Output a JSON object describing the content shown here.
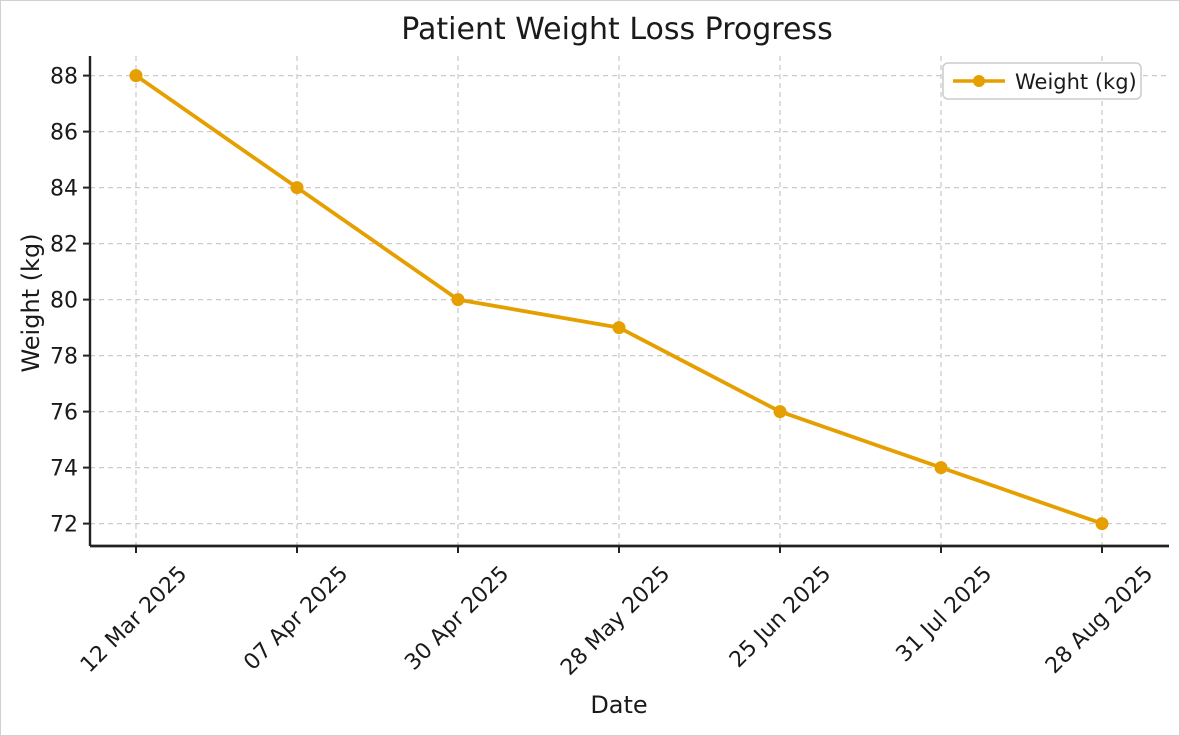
{
  "chart_data": {
    "type": "line",
    "title": "Patient Weight Loss Progress",
    "xlabel": "Date",
    "ylabel": "Weight (kg)",
    "categories": [
      "12 Mar 2025",
      "07 Apr 2025",
      "30 Apr 2025",
      "28 May 2025",
      "25 Jun 2025",
      "31 Jul 2025",
      "28 Aug 2025"
    ],
    "series": [
      {
        "name": "Weight (kg)",
        "values": [
          88,
          84,
          80,
          79,
          76,
          74,
          72
        ]
      }
    ],
    "yticks": [
      72,
      74,
      76,
      78,
      80,
      82,
      84,
      86,
      88
    ],
    "ylim": [
      71.2,
      88.7
    ],
    "grid": true,
    "legend": {
      "position": "upper right",
      "label": "Weight (kg)"
    },
    "colors": {
      "line": "#E69F00",
      "marker": "#E69F00",
      "grid": "#cccccc",
      "axis": "#222222",
      "text": "#1a1a1a",
      "legend_border": "#cccccc",
      "background": "#ffffff"
    }
  }
}
